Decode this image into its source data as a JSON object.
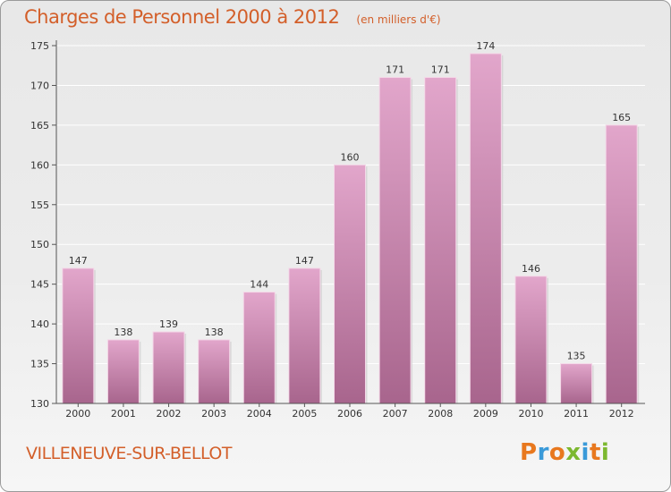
{
  "header": {
    "title": "Charges de Personnel 2000 à 2012",
    "unit": "(en milliers d'€)"
  },
  "footer": {
    "commune": "VILLENEUVE-SUR-BELLOT",
    "logo_text": "Proxiti",
    "logo_colors": [
      "#e8781e",
      "#3a9ad9",
      "#e8781e",
      "#7cb82f",
      "#3a9ad9",
      "#e8781e",
      "#7cb82f"
    ]
  },
  "colors": {
    "bar_light": "#e2a6cb",
    "bar_dark": "#a8658d",
    "title": "#d35f2a",
    "axis": "#555555"
  },
  "chart_data": {
    "type": "bar",
    "title": "Charges de Personnel 2000 à 2012",
    "subtitle": "(en milliers d'€)",
    "xlabel": "",
    "ylabel": "",
    "categories": [
      "2000",
      "2001",
      "2002",
      "2003",
      "2004",
      "2005",
      "2006",
      "2007",
      "2008",
      "2009",
      "2010",
      "2011",
      "2012"
    ],
    "values": [
      147,
      138,
      139,
      138,
      144,
      147,
      160,
      171,
      171,
      174,
      146,
      135,
      165
    ],
    "ylim": [
      130,
      175
    ],
    "yticks": [
      130,
      135,
      140,
      145,
      150,
      155,
      160,
      165,
      170,
      175
    ],
    "grid": true,
    "legend": "none"
  }
}
